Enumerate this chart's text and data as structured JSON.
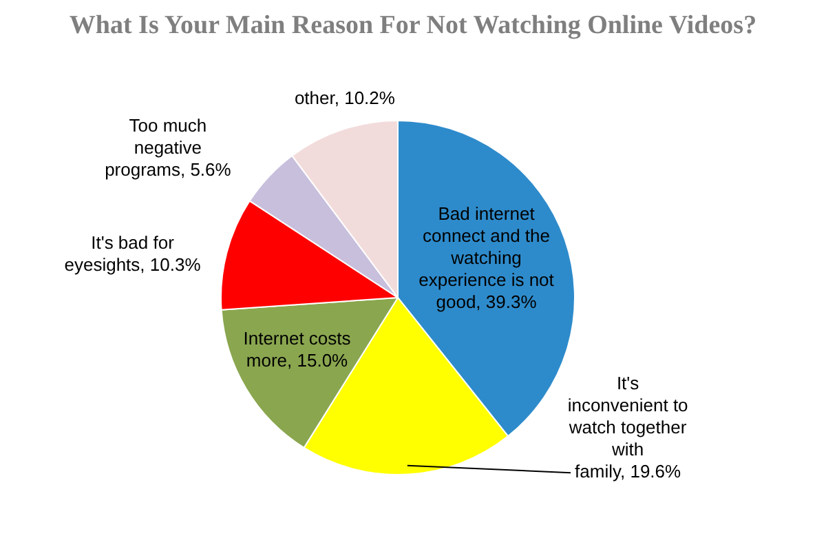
{
  "chart_data": {
    "type": "pie",
    "title": "What Is Your Main Reason For Not Watching Online Videos?",
    "categories": [
      "Bad internet connect and the watching experience is not good",
      "It's inconvenient to watch together with family",
      "Internet costs more",
      "It's bad for eyesights",
      "Too much negative programs",
      "other"
    ],
    "value_labels": [
      "39.3%",
      "19.6%",
      "15.0%",
      "10.3%",
      "5.6%",
      "10.2%"
    ],
    "values": [
      39.3,
      19.6,
      15.0,
      10.3,
      5.6,
      10.2
    ],
    "colors": [
      "#2e8bcb",
      "#ffff00",
      "#8aa64f",
      "#ff0000",
      "#c8bfdd",
      "#f2dcdb"
    ],
    "legend": false
  }
}
